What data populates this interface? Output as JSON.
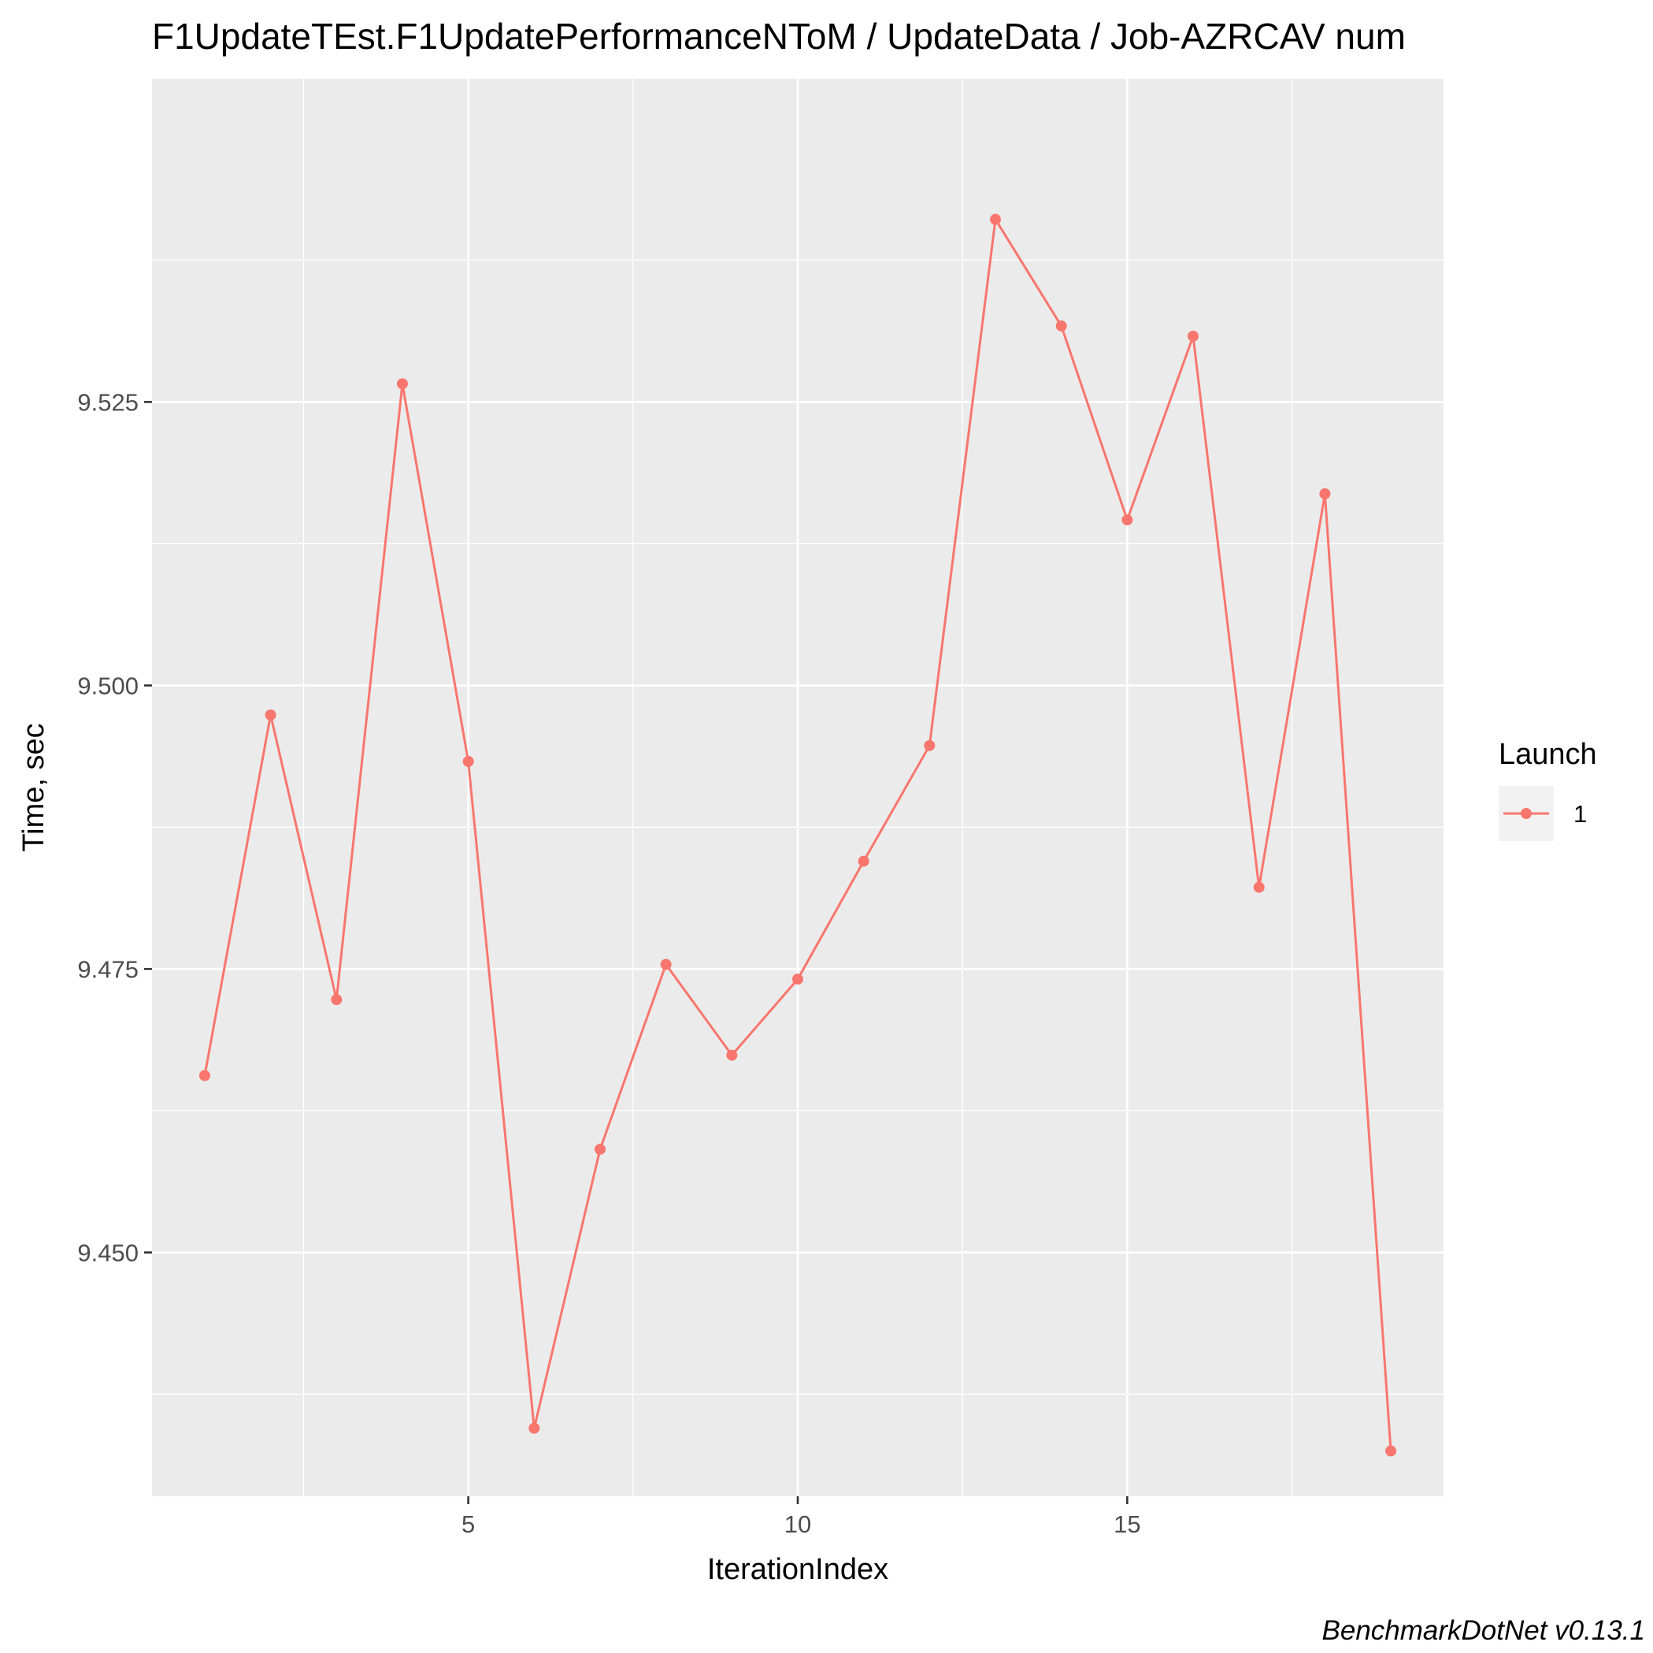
{
  "chart_data": {
    "type": "line",
    "title": "F1UpdateTEst.F1UpdatePerformanceNToM / UpdateData / Job-AZRCAV num",
    "xlabel": "IterationIndex",
    "ylabel": "Time, sec",
    "caption": "BenchmarkDotNet v0.13.1",
    "xlim": [
      0.2,
      19.8
    ],
    "ylim": [
      9.4285,
      9.5535
    ],
    "x_ticks": [
      5,
      10,
      15
    ],
    "x_tick_labels": [
      "5",
      "10",
      "15"
    ],
    "y_ticks": [
      9.45,
      9.475,
      9.5,
      9.525
    ],
    "y_tick_labels": [
      "9.450",
      "9.475",
      "9.500",
      "9.525"
    ],
    "grid": true,
    "legend": {
      "title": "Launch",
      "position": "right"
    },
    "colors": {
      "series": "#f8766d",
      "panel": "#ebebeb",
      "grid": "#ffffff"
    },
    "series": [
      {
        "name": "1",
        "x": [
          1,
          2,
          3,
          4,
          5,
          6,
          7,
          8,
          9,
          10,
          11,
          12,
          13,
          14,
          15,
          16,
          17,
          18,
          19
        ],
        "values": [
          9.4656,
          9.4974,
          9.4723,
          9.5266,
          9.4933,
          9.4345,
          9.4591,
          9.4754,
          9.4674,
          9.4741,
          9.4845,
          9.4947,
          9.5411,
          9.5317,
          9.5146,
          9.5308,
          9.4822,
          9.5169,
          9.4325
        ]
      }
    ]
  }
}
